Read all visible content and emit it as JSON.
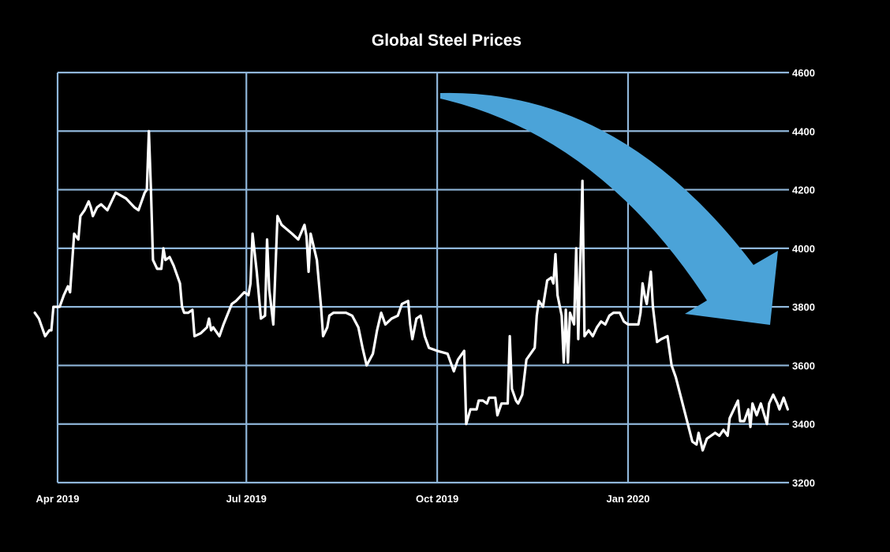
{
  "chart_data": {
    "type": "line",
    "title": "Global Steel Prices",
    "xlabel": "",
    "ylabel": "",
    "ylim": [
      3200,
      4600
    ],
    "y_ticks": [
      "3200",
      "3400",
      "3600",
      "3800",
      "4000",
      "4200",
      "4400",
      "4600"
    ],
    "y_axis_side": "right",
    "x_ticks": [
      {
        "date": "2019-04-01",
        "label": "Apr 2019"
      },
      {
        "date": "2019-07-01",
        "label": "Jul 2019"
      },
      {
        "date": "2019-10-01",
        "label": "Oct 2019"
      },
      {
        "date": "2020-01-01",
        "label": "Jan 2020"
      }
    ],
    "grid": true,
    "colors": {
      "background": "#000000",
      "line": "#ffffff",
      "grid": "#8fb6d9",
      "arrow": "#4ba3d8"
    },
    "annotation": "downward-trend-arrow",
    "x": [
      "2019-03-21",
      "2019-03-23",
      "2019-03-26",
      "2019-03-28",
      "2019-03-29",
      "2019-03-30",
      "2019-04-02",
      "2019-04-04",
      "2019-04-06",
      "2019-04-07",
      "2019-04-08",
      "2019-04-09",
      "2019-04-11",
      "2019-04-12",
      "2019-04-14",
      "2019-04-16",
      "2019-04-17",
      "2019-04-18",
      "2019-04-20",
      "2019-04-22",
      "2019-04-25",
      "2019-04-29",
      "2019-05-04",
      "2019-05-08",
      "2019-05-10",
      "2019-05-13",
      "2019-05-14",
      "2019-05-15",
      "2019-05-16",
      "2019-05-17",
      "2019-05-19",
      "2019-05-21",
      "2019-05-22",
      "2019-05-23",
      "2019-05-25",
      "2019-05-27",
      "2019-05-30",
      "2019-05-31",
      "2019-06-01",
      "2019-06-03",
      "2019-06-05",
      "2019-06-06",
      "2019-06-09",
      "2019-06-12",
      "2019-06-13",
      "2019-06-14",
      "2019-06-15",
      "2019-06-18",
      "2019-06-20",
      "2019-06-24",
      "2019-06-26",
      "2019-06-30",
      "2019-07-02",
      "2019-07-03",
      "2019-07-04",
      "2019-07-06",
      "2019-07-08",
      "2019-07-10",
      "2019-07-11",
      "2019-07-12",
      "2019-07-14",
      "2019-07-16",
      "2019-07-18",
      "2019-07-23",
      "2019-07-26",
      "2019-07-29",
      "2019-07-30",
      "2019-07-31",
      "2019-08-01",
      "2019-08-04",
      "2019-08-06",
      "2019-08-07",
      "2019-08-09",
      "2019-08-10",
      "2019-08-12",
      "2019-08-15",
      "2019-08-18",
      "2019-08-21",
      "2019-08-24",
      "2019-08-26",
      "2019-08-28",
      "2019-08-31",
      "2019-09-02",
      "2019-09-04",
      "2019-09-06",
      "2019-09-09",
      "2019-09-12",
      "2019-09-14",
      "2019-09-17",
      "2019-09-18",
      "2019-09-19",
      "2019-09-21",
      "2019-09-23",
      "2019-09-25",
      "2019-09-27",
      "2019-10-01",
      "2019-10-06",
      "2019-10-09",
      "2019-10-11",
      "2019-10-14",
      "2019-10-15",
      "2019-10-17",
      "2019-10-20",
      "2019-10-21",
      "2019-10-23",
      "2019-10-25",
      "2019-10-26",
      "2019-10-29",
      "2019-10-30",
      "2019-11-01",
      "2019-11-04",
      "2019-11-05",
      "2019-11-06",
      "2019-11-08",
      "2019-11-09",
      "2019-11-11",
      "2019-11-13",
      "2019-11-17",
      "2019-11-18",
      "2019-11-19",
      "2019-11-21",
      "2019-11-23",
      "2019-11-25",
      "2019-11-26",
      "2019-11-27",
      "2019-11-28",
      "2019-11-30",
      "2019-12-01",
      "2019-12-02",
      "2019-12-03",
      "2019-12-04",
      "2019-12-06",
      "2019-12-07",
      "2019-12-08",
      "2019-12-10",
      "2019-12-11",
      "2019-12-13",
      "2019-12-15",
      "2019-12-17",
      "2019-12-19",
      "2019-12-21",
      "2019-12-23",
      "2019-12-25",
      "2019-12-28",
      "2019-12-30",
      "2020-01-01",
      "2020-01-06",
      "2020-01-07",
      "2020-01-08",
      "2020-01-09",
      "2020-01-10",
      "2020-01-12",
      "2020-01-13",
      "2020-01-15",
      "2020-01-17",
      "2020-01-20",
      "2020-01-22",
      "2020-01-24",
      "2020-01-28",
      "2020-02-01",
      "2020-02-03",
      "2020-02-04",
      "2020-02-06",
      "2020-02-08",
      "2020-02-10",
      "2020-02-12",
      "2020-02-14",
      "2020-02-16",
      "2020-02-18",
      "2020-02-19",
      "2020-02-21",
      "2020-02-23",
      "2020-02-24",
      "2020-02-26",
      "2020-02-28",
      "2020-02-29",
      "2020-03-01",
      "2020-03-03",
      "2020-03-05",
      "2020-03-08",
      "2020-03-09",
      "2020-03-11",
      "2020-03-13",
      "2020-03-14",
      "2020-03-16",
      "2020-03-18"
    ],
    "series": [
      {
        "values": [
          3780,
          3760,
          3700,
          3720,
          3720,
          3800,
          3800,
          3840,
          3870,
          3850,
          3950,
          4050,
          4030,
          4110,
          4130,
          4160,
          4140,
          4110,
          4140,
          4150,
          4130,
          4190,
          4170,
          4140,
          4130,
          4190,
          4200,
          4400,
          4200,
          3960,
          3930,
          3930,
          4000,
          3960,
          3970,
          3940,
          3880,
          3800,
          3780,
          3780,
          3790,
          3700,
          3710,
          3730,
          3760,
          3720,
          3730,
          3700,
          3740,
          3810,
          3820,
          3850,
          3840,
          3880,
          4050,
          3920,
          3760,
          3770,
          4030,
          3860,
          3740,
          4110,
          4080,
          4050,
          4030,
          4080,
          4040,
          3920,
          4050,
          3960,
          3800,
          3700,
          3730,
          3770,
          3780,
          3780,
          3780,
          3770,
          3730,
          3660,
          3600,
          3640,
          3720,
          3780,
          3740,
          3760,
          3770,
          3810,
          3820,
          3740,
          3690,
          3760,
          3770,
          3700,
          3660,
          3650,
          3640,
          3580,
          3620,
          3650,
          3400,
          3450,
          3450,
          3480,
          3480,
          3470,
          3490,
          3490,
          3430,
          3470,
          3470,
          3700,
          3520,
          3480,
          3470,
          3500,
          3620,
          3660,
          3770,
          3820,
          3800,
          3890,
          3900,
          3880,
          3980,
          3840,
          3770,
          3610,
          3790,
          3610,
          3780,
          3740,
          4000,
          3690,
          4230,
          3700,
          3720,
          3700,
          3730,
          3750,
          3740,
          3770,
          3780,
          3780,
          3750,
          3740,
          3740,
          3780,
          3880,
          3840,
          3810,
          3920,
          3800,
          3680,
          3690,
          3700,
          3600,
          3560,
          3450,
          3340,
          3330,
          3370,
          3310,
          3350,
          3360,
          3370,
          3360,
          3380,
          3360,
          3420,
          3450,
          3480,
          3410,
          3410,
          3450,
          3390,
          3470,
          3430,
          3470,
          3400,
          3470,
          3500,
          3470,
          3450,
          3490,
          3450
        ]
      }
    ]
  }
}
